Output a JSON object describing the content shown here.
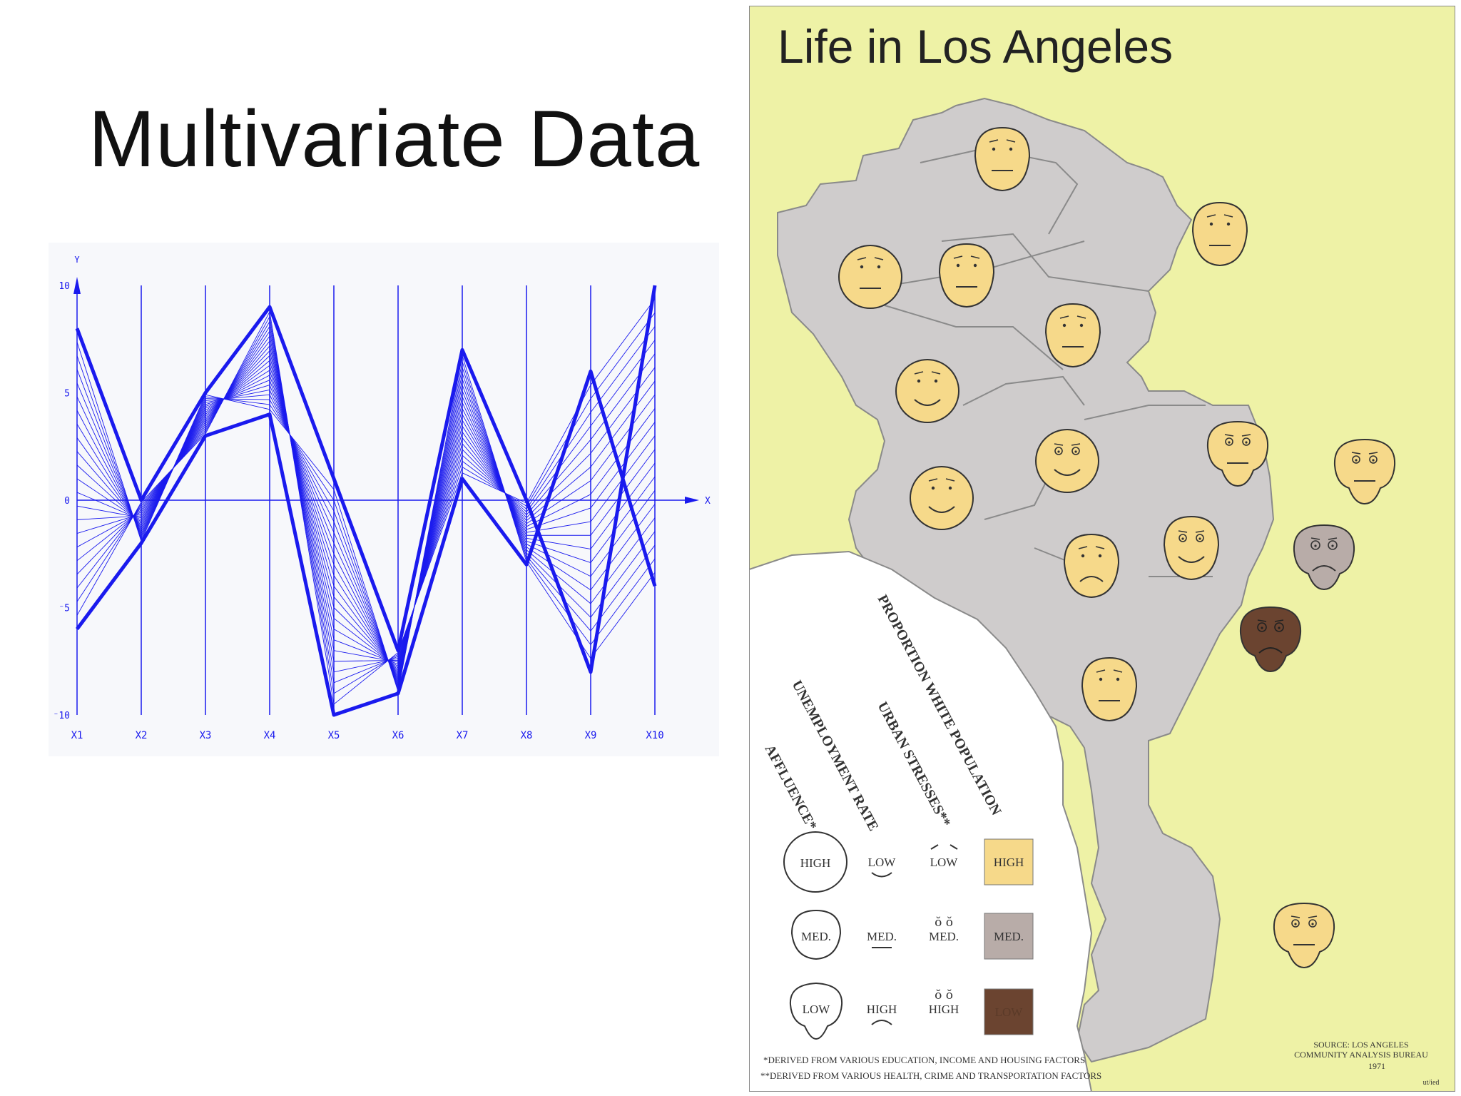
{
  "slide": {
    "title": "Multivariate Data"
  },
  "chart_data": {
    "type": "line",
    "y_axis_label": "Y",
    "x_axis_label": "X",
    "y_ticks": [
      "10",
      "5",
      "0",
      "⁻5",
      "⁻10"
    ],
    "ylim": [
      -10,
      10
    ],
    "axes": [
      "X1",
      "X2",
      "X3",
      "X4",
      "X5",
      "X6",
      "X7",
      "X8",
      "X9",
      "X10"
    ],
    "series": [
      {
        "values": [
          8,
          0,
          5,
          9,
          1,
          -7,
          7,
          0,
          -8,
          10
        ]
      },
      {
        "values": [
          -6,
          -2,
          3,
          4,
          -10,
          -9,
          1,
          -3,
          6,
          -4
        ]
      }
    ],
    "color": "#1a1aee"
  },
  "map": {
    "title": "Life in Los Angeles",
    "colors": {
      "background": "#eef2a6",
      "city": "#cfcccc",
      "ocean": "#ffffff",
      "face_high": "#f6d98a",
      "face_med": "#b8aca8",
      "face_low": "#6b4430"
    },
    "legend": {
      "headings": [
        "PROPORTION WHITE POPULATION",
        "URBAN STRESSES**",
        "UNEMPLOYMENT RATE",
        "AFFLUENCE*"
      ],
      "affluence": [
        "HIGH",
        "MED.",
        "LOW"
      ],
      "unemployment": [
        "LOW",
        "MED.",
        "HIGH"
      ],
      "stress": [
        "LOW",
        "MED.",
        "HIGH"
      ],
      "proportion": [
        "HIGH",
        "MED.",
        "LOW"
      ],
      "footnote1": "*DERIVED FROM VARIOUS EDUCATION, INCOME AND HOUSING FACTORS",
      "footnote2": "**DERIVED FROM VARIOUS HEALTH, CRIME AND TRANSPORTATION FACTORS",
      "source1": "SOURCE: LOS ANGELES",
      "source2": "COMMUNITY ANALYSIS BUREAU",
      "year": "1971",
      "credit": "ut/ied"
    }
  }
}
